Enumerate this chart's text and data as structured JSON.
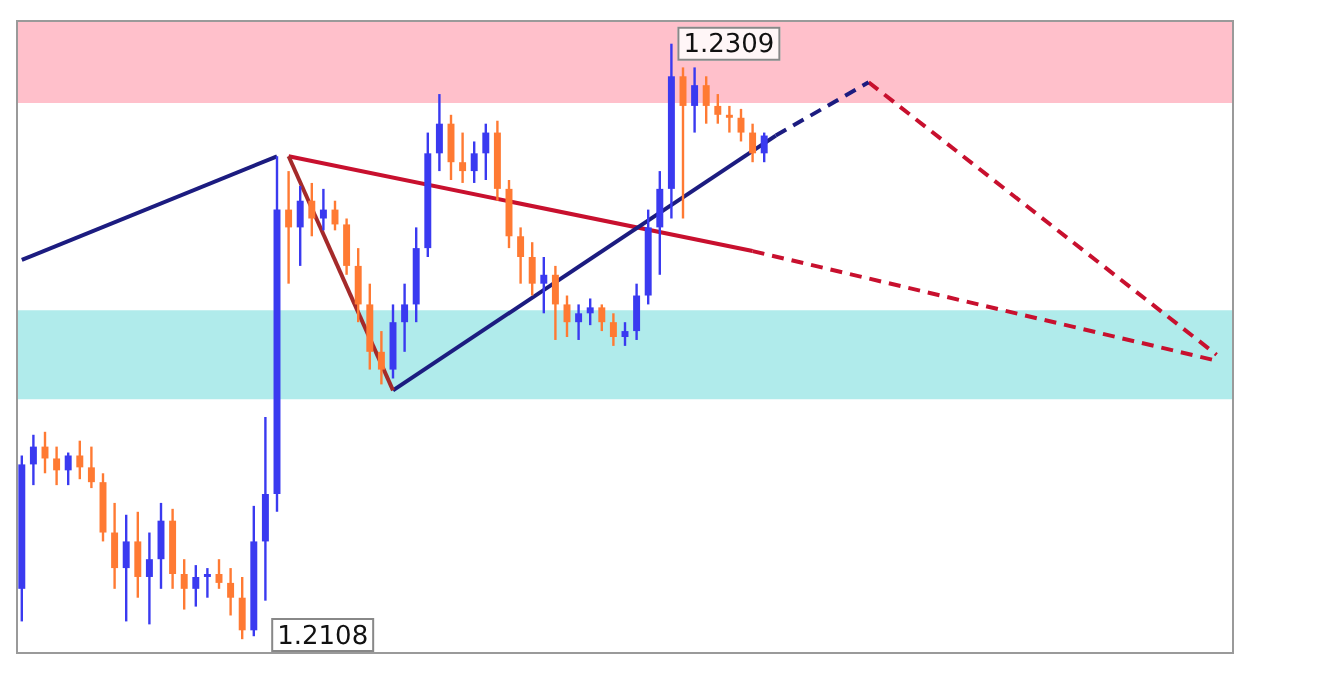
{
  "chart_data": {
    "type": "candlestick",
    "categories": [
      null,
      null,
      null,
      null,
      null,
      null,
      null,
      null,
      null,
      null,
      null,
      null,
      null,
      null,
      null,
      null,
      null,
      null,
      null,
      null,
      null,
      null,
      null,
      null,
      null,
      null,
      null,
      null,
      null,
      null,
      null,
      null,
      null,
      null,
      null,
      null,
      null,
      null,
      null,
      null,
      null,
      null,
      null,
      null,
      null,
      null,
      null,
      null,
      null,
      null,
      null,
      null,
      null,
      null,
      null,
      null,
      null,
      null,
      null,
      null,
      null,
      null,
      null,
      null,
      null,
      null,
      null,
      null,
      null,
      null,
      null,
      null,
      null,
      null,
      null,
      null,
      null,
      null,
      null,
      null,
      null,
      null,
      null,
      null,
      null,
      null,
      null,
      null,
      null,
      null,
      null,
      null,
      null,
      null,
      null,
      null,
      null,
      null,
      null,
      null,
      null,
      null,
      null,
      null,
      null
    ],
    "ohlc": [
      [
        1.2125,
        1.217,
        1.2114,
        1.2167
      ],
      [
        1.2167,
        1.2177,
        1.216,
        1.2173
      ],
      [
        1.2173,
        1.2178,
        1.2164,
        1.2169
      ],
      [
        1.2169,
        1.2173,
        1.216,
        1.2165
      ],
      [
        1.2165,
        1.2171,
        1.216,
        1.217
      ],
      [
        1.217,
        1.2175,
        1.2162,
        1.2166
      ],
      [
        1.2166,
        1.2173,
        1.2159,
        1.2161
      ],
      [
        1.2161,
        1.2164,
        1.2141,
        1.2144
      ],
      [
        1.2144,
        1.2154,
        1.2125,
        1.2132
      ],
      [
        1.2132,
        1.215,
        1.2114,
        1.2141
      ],
      [
        1.2141,
        1.2151,
        1.2122,
        1.2129
      ],
      [
        1.2129,
        1.2144,
        1.2113,
        1.2135
      ],
      [
        1.2135,
        1.2154,
        1.2125,
        1.2148
      ],
      [
        1.2148,
        1.2152,
        1.2125,
        1.213
      ],
      [
        1.213,
        1.2135,
        1.2118,
        1.2125
      ],
      [
        1.2125,
        1.2133,
        1.2119,
        1.2129
      ],
      [
        1.2129,
        1.2132,
        1.2122,
        1.213
      ],
      [
        1.213,
        1.2135,
        1.2125,
        1.2127
      ],
      [
        1.2127,
        1.2132,
        1.2116,
        1.2122
      ],
      [
        1.2122,
        1.2129,
        1.2108,
        1.2111
      ],
      [
        1.2111,
        1.2153,
        1.2109,
        1.2141
      ],
      [
        1.2141,
        1.2183,
        1.2121,
        1.2157
      ],
      [
        1.2157,
        1.2271,
        1.2151,
        1.2253
      ],
      [
        1.2253,
        1.2266,
        1.2228,
        1.2247
      ],
      [
        1.2247,
        1.2261,
        1.2234,
        1.2256
      ],
      [
        1.2256,
        1.2262,
        1.2244,
        1.225
      ],
      [
        1.225,
        1.226,
        1.2246,
        1.2253
      ],
      [
        1.2253,
        1.2256,
        1.2246,
        1.2248
      ],
      [
        1.2248,
        1.225,
        1.2231,
        1.2234
      ],
      [
        1.2234,
        1.224,
        1.2215,
        1.2221
      ],
      [
        1.2221,
        1.2228,
        1.2199,
        1.2205
      ],
      [
        1.2205,
        1.2212,
        1.2194,
        1.2199
      ],
      [
        1.2199,
        1.2221,
        1.2196,
        1.2215
      ],
      [
        1.2215,
        1.2228,
        1.2205,
        1.2221
      ],
      [
        1.2221,
        1.2247,
        1.2215,
        1.224
      ],
      [
        1.224,
        1.2279,
        1.2237,
        1.2272
      ],
      [
        1.2272,
        1.2292,
        1.2266,
        1.2282
      ],
      [
        1.2282,
        1.2285,
        1.2263,
        1.2269
      ],
      [
        1.2269,
        1.2279,
        1.2262,
        1.2266
      ],
      [
        1.2266,
        1.2276,
        1.2262,
        1.2272
      ],
      [
        1.2272,
        1.2282,
        1.2263,
        1.2279
      ],
      [
        1.2279,
        1.2283,
        1.2256,
        1.226
      ],
      [
        1.226,
        1.2263,
        1.224,
        1.2244
      ],
      [
        1.2244,
        1.2247,
        1.2228,
        1.2237
      ],
      [
        1.2237,
        1.2242,
        1.2224,
        1.2228
      ],
      [
        1.2228,
        1.2237,
        1.2218,
        1.2231
      ],
      [
        1.2231,
        1.2234,
        1.2209,
        1.2221
      ],
      [
        1.2221,
        1.2224,
        1.221,
        1.2215
      ],
      [
        1.2215,
        1.2221,
        1.2209,
        1.2218
      ],
      [
        1.2218,
        1.2223,
        1.2214,
        1.222
      ],
      [
        1.222,
        1.2221,
        1.2212,
        1.2215
      ],
      [
        1.2215,
        1.2218,
        1.2207,
        1.221
      ],
      [
        1.221,
        1.2215,
        1.2207,
        1.2212
      ],
      [
        1.2212,
        1.2228,
        1.2209,
        1.2224
      ],
      [
        1.2224,
        1.2253,
        1.2221,
        1.2247
      ],
      [
        1.2247,
        1.2266,
        1.2231,
        1.226
      ],
      [
        1.226,
        1.2309,
        1.225,
        1.2298
      ],
      [
        1.2298,
        1.2301,
        1.225,
        1.2288
      ],
      [
        1.2288,
        1.2301,
        1.2279,
        1.2295
      ],
      [
        1.2295,
        1.2298,
        1.2282,
        1.2288
      ],
      [
        1.2288,
        1.2292,
        1.2282,
        1.2285
      ],
      [
        1.2285,
        1.2288,
        1.2279,
        1.2284
      ],
      [
        1.2284,
        1.2287,
        1.2276,
        1.2279
      ],
      [
        1.2279,
        1.2282,
        1.2269,
        1.2272
      ],
      [
        1.2272,
        1.2279,
        1.2269,
        1.2278
      ],
      null,
      null,
      null,
      null,
      null,
      null,
      null,
      null,
      null,
      null,
      null,
      null,
      null,
      null,
      null,
      null,
      null,
      null,
      null,
      null,
      null,
      null,
      null,
      null,
      null,
      null,
      null,
      null,
      null,
      null,
      null,
      null,
      null,
      null,
      null,
      null,
      null,
      null,
      null,
      null
    ],
    "colors": [
      "#3a3af0",
      "#3a3af0",
      "#ff7a33",
      "#ff7a33",
      "#3a3af0",
      "#ff7a33",
      "#ff7a33",
      "#ff7a33",
      "#ff7a33",
      "#3a3af0",
      "#ff7a33",
      "#3a3af0",
      "#3a3af0",
      "#ff7a33",
      "#ff7a33",
      "#3a3af0",
      "#3a3af0",
      "#ff7a33",
      "#ff7a33",
      "#ff7a33",
      "#3a3af0",
      "#3a3af0",
      "#3a3af0",
      "#ff7a33",
      "#3a3af0",
      "#ff7a33",
      "#3a3af0",
      "#ff7a33",
      "#ff7a33",
      "#ff7a33",
      "#ff7a33",
      "#ff7a33",
      "#3a3af0",
      "#3a3af0",
      "#3a3af0",
      "#3a3af0",
      "#3a3af0",
      "#ff7a33",
      "#ff7a33",
      "#3a3af0",
      "#3a3af0",
      "#ff7a33",
      "#ff7a33",
      "#ff7a33",
      "#ff7a33",
      "#3a3af0",
      "#ff7a33",
      "#ff7a33",
      "#3a3af0",
      "#3a3af0",
      "#ff7a33",
      "#ff7a33",
      "#3a3af0",
      "#3a3af0",
      "#3a3af0",
      "#3a3af0",
      "#3a3af0",
      "#ff7a33",
      "#3a3af0",
      "#ff7a33",
      "#ff7a33",
      "#ff7a33",
      "#ff7a33",
      "#ff7a33",
      "#3a3af0",
      null,
      null,
      null,
      null,
      null,
      null,
      null,
      null,
      null,
      null,
      null,
      null,
      null,
      null,
      null,
      null,
      null,
      null,
      null,
      null,
      null,
      null,
      null,
      null,
      null,
      null,
      null,
      null,
      null,
      null,
      null,
      null,
      null,
      null,
      null,
      null,
      null,
      null,
      null,
      null
    ],
    "series": [
      {
        "type": "line",
        "color": "#1c1c80",
        "line_style": "solid",
        "values": [
          1.2236,
          null,
          null,
          null,
          null,
          null,
          null,
          null,
          null,
          null,
          null,
          null,
          null,
          null,
          null,
          null,
          null,
          null,
          null,
          null,
          null,
          null,
          1.2271,
          null,
          null,
          null,
          null,
          null,
          null,
          null,
          null,
          null,
          null,
          null,
          null,
          null,
          null,
          null,
          null,
          null,
          null,
          null,
          null,
          null,
          null,
          null,
          null,
          null,
          null,
          null,
          null,
          null,
          null,
          null,
          null,
          null,
          null,
          null,
          null,
          null,
          null,
          null,
          null,
          null,
          null,
          null,
          null,
          null,
          null,
          null,
          null,
          null,
          null,
          null,
          null,
          null,
          null,
          null,
          null,
          null,
          null,
          null,
          null,
          null,
          null,
          null,
          null,
          null,
          null,
          null,
          null,
          null,
          null,
          null,
          null,
          null,
          null,
          null,
          null,
          null,
          null,
          null,
          null,
          null,
          null
        ]
      },
      {
        "type": "line",
        "color": "#a52a2a",
        "line_style": "solid",
        "values": [
          null,
          null,
          null,
          null,
          null,
          null,
          null,
          null,
          null,
          null,
          null,
          null,
          null,
          null,
          null,
          null,
          null,
          null,
          null,
          null,
          null,
          null,
          null,
          1.2271,
          null,
          null,
          null,
          null,
          null,
          null,
          null,
          null,
          1.2192,
          null,
          null,
          null,
          null,
          null,
          null,
          null,
          null,
          null,
          null,
          null,
          null,
          null,
          null,
          null,
          null,
          null,
          null,
          null,
          null,
          null,
          null,
          null,
          null,
          null,
          null,
          null,
          null,
          null,
          null,
          null,
          null,
          null,
          null,
          null,
          null,
          null,
          null,
          null,
          null,
          null,
          null,
          null,
          null,
          null,
          null,
          null,
          null,
          null,
          null,
          null,
          null,
          null,
          null,
          null,
          null,
          null,
          null,
          null,
          null,
          null,
          null,
          null,
          null,
          null,
          null,
          null,
          null,
          null,
          null,
          null,
          null
        ]
      },
      {
        "type": "line",
        "color": "#1c1c80",
        "line_style": "solid",
        "values": [
          null,
          null,
          null,
          null,
          null,
          null,
          null,
          null,
          null,
          null,
          null,
          null,
          null,
          null,
          null,
          null,
          null,
          null,
          null,
          null,
          null,
          null,
          null,
          null,
          null,
          null,
          null,
          null,
          null,
          null,
          null,
          null,
          1.2192,
          null,
          null,
          null,
          null,
          null,
          null,
          null,
          null,
          null,
          null,
          null,
          null,
          null,
          null,
          null,
          null,
          null,
          null,
          null,
          null,
          null,
          null,
          null,
          null,
          null,
          null,
          null,
          null,
          null,
          null,
          null,
          null,
          1.2278,
          null,
          null,
          null,
          null,
          null,
          null,
          null,
          null,
          null,
          null,
          null,
          null,
          null,
          null,
          null,
          null,
          null,
          null,
          null,
          null,
          null,
          null,
          null,
          null,
          null,
          null,
          null,
          null,
          null,
          null,
          null,
          null,
          null,
          null,
          null,
          null,
          null,
          null,
          null
        ]
      },
      {
        "type": "line",
        "color": "#1c1c80",
        "line_style": "dashed",
        "values": [
          null,
          null,
          null,
          null,
          null,
          null,
          null,
          null,
          null,
          null,
          null,
          null,
          null,
          null,
          null,
          null,
          null,
          null,
          null,
          null,
          null,
          null,
          null,
          null,
          null,
          null,
          null,
          null,
          null,
          null,
          null,
          null,
          null,
          null,
          null,
          null,
          null,
          null,
          null,
          null,
          null,
          null,
          null,
          null,
          null,
          null,
          null,
          null,
          null,
          null,
          null,
          null,
          null,
          null,
          null,
          null,
          null,
          null,
          null,
          null,
          null,
          null,
          null,
          null,
          null,
          1.2278,
          null,
          null,
          null,
          null,
          null,
          null,
          null,
          1.2296,
          null,
          null,
          null,
          null,
          null,
          null,
          null,
          null,
          null,
          null,
          null,
          null,
          null,
          null,
          null,
          null,
          null,
          null,
          null,
          null,
          null,
          null,
          null,
          null,
          null,
          null,
          null,
          null,
          null,
          null,
          null
        ]
      },
      {
        "type": "line",
        "color": "#c8102e",
        "line_style": "solid",
        "values": [
          null,
          null,
          null,
          null,
          null,
          null,
          null,
          null,
          null,
          null,
          null,
          null,
          null,
          null,
          null,
          null,
          null,
          null,
          null,
          null,
          null,
          null,
          null,
          1.2271,
          null,
          null,
          null,
          null,
          null,
          null,
          null,
          null,
          null,
          null,
          null,
          null,
          null,
          null,
          null,
          null,
          null,
          null,
          null,
          null,
          null,
          null,
          null,
          null,
          null,
          null,
          null,
          null,
          null,
          null,
          null,
          null,
          null,
          null,
          null,
          null,
          null,
          null,
          null,
          1.2239,
          null,
          null,
          null,
          null,
          null,
          null,
          null,
          null,
          null,
          null,
          null,
          null,
          null,
          null,
          null,
          null,
          null,
          null,
          null,
          null,
          null,
          null,
          null,
          null,
          null,
          null,
          null,
          null,
          null,
          null,
          null,
          null,
          null,
          null,
          null,
          null,
          null,
          null,
          null,
          null,
          null
        ]
      },
      {
        "type": "line",
        "color": "#c8102e",
        "line_style": "dashed",
        "values": [
          null,
          null,
          null,
          null,
          null,
          null,
          null,
          null,
          null,
          null,
          null,
          null,
          null,
          null,
          null,
          null,
          null,
          null,
          null,
          null,
          null,
          null,
          null,
          null,
          null,
          null,
          null,
          null,
          null,
          null,
          null,
          null,
          null,
          null,
          null,
          null,
          null,
          null,
          null,
          null,
          null,
          null,
          null,
          null,
          null,
          null,
          null,
          null,
          null,
          null,
          null,
          null,
          null,
          null,
          null,
          null,
          null,
          null,
          null,
          null,
          null,
          null,
          null,
          1.2239,
          null,
          null,
          null,
          null,
          null,
          null,
          null,
          null,
          null,
          null,
          null,
          null,
          null,
          null,
          null,
          null,
          null,
          null,
          null,
          null,
          null,
          null,
          null,
          null,
          null,
          null,
          null,
          null,
          null,
          null,
          null,
          null,
          null,
          null,
          null,
          null,
          null,
          null,
          null,
          1.2202,
          null
        ]
      },
      {
        "type": "line",
        "color": "#c8102e",
        "line_style": "dashed",
        "values": [
          null,
          null,
          null,
          null,
          null,
          null,
          null,
          null,
          null,
          null,
          null,
          null,
          null,
          null,
          null,
          null,
          null,
          null,
          null,
          null,
          null,
          null,
          null,
          null,
          null,
          null,
          null,
          null,
          null,
          null,
          null,
          null,
          null,
          null,
          null,
          null,
          null,
          null,
          null,
          null,
          null,
          null,
          null,
          null,
          null,
          null,
          null,
          null,
          null,
          null,
          null,
          null,
          null,
          null,
          null,
          null,
          null,
          null,
          null,
          null,
          null,
          null,
          null,
          null,
          null,
          null,
          null,
          null,
          null,
          null,
          null,
          null,
          null,
          1.2296,
          null,
          null,
          null,
          null,
          null,
          null,
          null,
          null,
          null,
          null,
          null,
          null,
          null,
          null,
          null,
          null,
          null,
          null,
          null,
          null,
          null,
          null,
          null,
          null,
          null,
          null,
          null,
          null,
          null,
          1.2204,
          null
        ]
      }
    ],
    "bands": [
      {
        "axis": "y",
        "from": 1.2289,
        "to": 1.2317,
        "color": "#ffc0cb"
      },
      {
        "axis": "y",
        "from": 1.2189,
        "to": 1.2219,
        "color": "#b0ebeb"
      }
    ],
    "annotations": [
      "1.2309",
      "1.2108"
    ],
    "ylim": [
      1.2103,
      1.2317
    ],
    "tick_labels": false
  }
}
